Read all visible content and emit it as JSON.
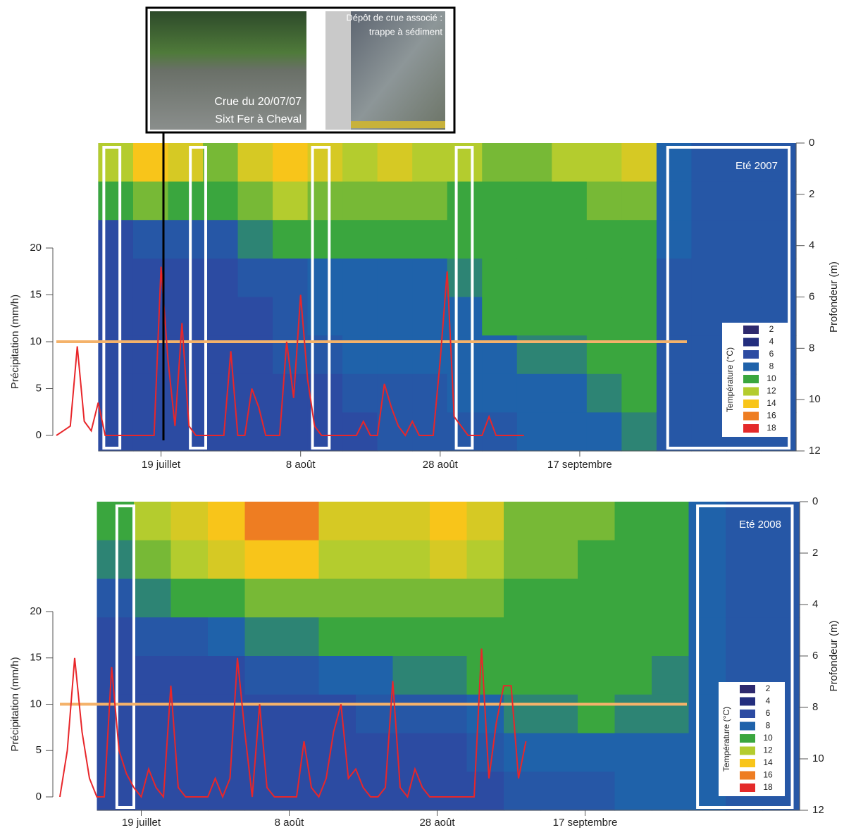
{
  "inset": {
    "left_caption": [
      "Crue du 20/07/07",
      "Sixt Fer à Cheval"
    ],
    "right_caption": [
      "Dépôt de crue associé :",
      "trappe à sédiment"
    ]
  },
  "chart_data": [
    {
      "type": "heatmap_line",
      "title": "Eté 2007",
      "ylabel": "Précipitation (mm/h)",
      "y2label": "Profondeur (m)",
      "xlim": [
        4,
        110
      ],
      "xticks": [
        {
          "value": 19,
          "label": "19 juillet"
        },
        {
          "value": 39,
          "label": "8 août"
        },
        {
          "value": 59,
          "label": "28 août"
        },
        {
          "value": 79,
          "label": "17 septembre"
        }
      ],
      "ylim": [
        0,
        20
      ],
      "yticks": [
        0,
        5,
        10,
        15,
        20
      ],
      "y2lim": [
        0,
        12
      ],
      "y2ticks": [
        0,
        2,
        4,
        6,
        8,
        10,
        12
      ],
      "threshold": 10,
      "threshold_color": "#f4b26a",
      "line_color": "#e8262a",
      "highlights": [
        [
          10.8,
          13.1
        ],
        [
          23.2,
          25.4
        ],
        [
          40.7,
          43.1
        ],
        [
          61.3,
          63.6
        ],
        [
          91.6,
          109
        ]
      ],
      "x": [
        4,
        5,
        6,
        7,
        8,
        9,
        10,
        11,
        12,
        13,
        14,
        15,
        16,
        17,
        18,
        19,
        20,
        21,
        22,
        23,
        24,
        25,
        26,
        27,
        28,
        29,
        30,
        31,
        32,
        33,
        34,
        35,
        36,
        37,
        38,
        39,
        40,
        41,
        42,
        43,
        44,
        45,
        46,
        47,
        48,
        49,
        50,
        51,
        52,
        53,
        54,
        55,
        56,
        57,
        58,
        59,
        60,
        61,
        62,
        63,
        64,
        65,
        66,
        67,
        68,
        69,
        70,
        71
      ],
      "values": [
        0,
        0.5,
        1,
        9.5,
        1.5,
        0.5,
        3.5,
        0,
        0,
        0,
        0,
        0,
        0,
        0,
        0,
        18,
        8,
        1,
        12,
        1,
        0,
        0,
        0,
        0,
        0,
        9,
        0,
        0,
        5,
        3,
        0,
        0,
        0,
        10,
        4,
        15,
        6,
        1,
        0,
        0,
        0,
        0,
        0,
        0,
        1.5,
        0,
        0,
        5.5,
        3,
        1,
        0,
        1.5,
        0,
        0,
        0,
        8,
        17.5,
        2,
        1,
        0,
        0,
        0,
        2,
        0,
        0,
        0,
        0,
        0
      ],
      "grid_x": [
        10,
        15,
        20,
        25,
        30,
        35,
        40,
        45,
        50,
        55,
        60,
        65,
        70,
        75,
        80,
        85,
        90,
        95,
        100,
        105,
        110
      ],
      "grid_depth": [
        0,
        1.5,
        3,
        4.5,
        6,
        7.5,
        9,
        10.5,
        12
      ],
      "z": [
        [
          12,
          10,
          6,
          6,
          6,
          6,
          6,
          6
        ],
        [
          14,
          11,
          7,
          6,
          6,
          6,
          6,
          6
        ],
        [
          13,
          10,
          7,
          6,
          6,
          6,
          6,
          6
        ],
        [
          11,
          10,
          7,
          6,
          6,
          6,
          6,
          6
        ],
        [
          13,
          11,
          9,
          7,
          6,
          6,
          6,
          6
        ],
        [
          14,
          12,
          10,
          7,
          7,
          7,
          6,
          6
        ],
        [
          13,
          11,
          10,
          8,
          8,
          7,
          6,
          6
        ],
        [
          12,
          11,
          10,
          8,
          8,
          8,
          7,
          6
        ],
        [
          13,
          11,
          10,
          8,
          8,
          8,
          7,
          7
        ],
        [
          12,
          11,
          10,
          8,
          8,
          8,
          7,
          7
        ],
        [
          12,
          10,
          10,
          9,
          8,
          8,
          8,
          7
        ],
        [
          11,
          10,
          10,
          10,
          10,
          8,
          8,
          7
        ],
        [
          11,
          10,
          10,
          10,
          10,
          9,
          8,
          8
        ],
        [
          12,
          10,
          10,
          10,
          10,
          9,
          8,
          8
        ],
        [
          12,
          11,
          10,
          10,
          10,
          10,
          9,
          8
        ],
        [
          13,
          11,
          10,
          10,
          10,
          10,
          10,
          9
        ],
        [
          8,
          8,
          8,
          7,
          7,
          7,
          7,
          7
        ],
        [
          7,
          7,
          7,
          7,
          7,
          7,
          7,
          7
        ],
        [
          7,
          7,
          7,
          7,
          7,
          7,
          7,
          7
        ],
        [
          7,
          7,
          7,
          7,
          7,
          7,
          7,
          7
        ]
      ],
      "legend": {
        "title": "Température (°C)",
        "values": [
          2,
          4,
          6,
          8,
          10,
          12,
          14,
          16,
          18
        ],
        "colors": [
          "#2e2a6e",
          "#232e7e",
          "#2c4ba2",
          "#1f62aa",
          "#3aa63e",
          "#b4cc2e",
          "#f8c51a",
          "#ee7d22",
          "#e42a2a"
        ]
      }
    },
    {
      "type": "heatmap_line",
      "title": "Eté 2008",
      "ylabel": "Précipitation (mm/h)",
      "y2label": "Profondeur (m)",
      "xlim": [
        8,
        108
      ],
      "xticks": [
        {
          "value": 19,
          "label": "19 juillet"
        },
        {
          "value": 39,
          "label": "8 août"
        },
        {
          "value": 59,
          "label": "28 août"
        },
        {
          "value": 79,
          "label": "17 septembre"
        }
      ],
      "ylim": [
        0,
        20
      ],
      "yticks": [
        0,
        5,
        10,
        15,
        20
      ],
      "y2lim": [
        0,
        12
      ],
      "y2ticks": [
        0,
        2,
        4,
        6,
        8,
        10,
        12
      ],
      "threshold": 10,
      "threshold_color": "#f4b26a",
      "line_color": "#e8262a",
      "highlights": [
        [
          15.7,
          18
        ],
        [
          94.2,
          107
        ]
      ],
      "x": [
        8,
        9,
        10,
        11,
        12,
        13,
        14,
        15,
        16,
        17,
        18,
        19,
        20,
        21,
        22,
        23,
        24,
        25,
        26,
        27,
        28,
        29,
        30,
        31,
        32,
        33,
        34,
        35,
        36,
        37,
        38,
        39,
        40,
        41,
        42,
        43,
        44,
        45,
        46,
        47,
        48,
        49,
        50,
        51,
        52,
        53,
        54,
        55,
        56,
        57,
        58,
        59,
        60,
        61,
        62,
        63,
        64,
        65,
        66,
        67,
        68,
        69,
        70,
        71
      ],
      "values": [
        0,
        5,
        15,
        7,
        2,
        0,
        0,
        14,
        5,
        2.5,
        1,
        0,
        3,
        1,
        0,
        12,
        1,
        0,
        0,
        0,
        0,
        2,
        0,
        2,
        15,
        7,
        0,
        10,
        1,
        0,
        0,
        0,
        0,
        6,
        1,
        0,
        2,
        7,
        10,
        2,
        3,
        1,
        0,
        0,
        1,
        12.5,
        1,
        0,
        3,
        1,
        0,
        0,
        0,
        0,
        0,
        0,
        0,
        16,
        2,
        8,
        12,
        12,
        2,
        6
      ],
      "grid_x": [
        13,
        18,
        23,
        28,
        33,
        38,
        43,
        48,
        53,
        58,
        63,
        68,
        73,
        78,
        83,
        88,
        93,
        98,
        103,
        108
      ],
      "grid_depth": [
        0,
        1.5,
        3,
        4.5,
        6,
        7.5,
        9,
        10.5,
        12
      ],
      "z": [
        [
          10,
          9,
          7,
          6,
          6,
          6,
          6,
          6
        ],
        [
          12,
          11,
          9,
          7,
          6,
          6,
          6,
          6
        ],
        [
          13,
          12,
          10,
          7,
          6,
          6,
          6,
          6
        ],
        [
          14,
          13,
          10,
          8,
          6,
          6,
          6,
          6
        ],
        [
          16,
          14,
          11,
          9,
          7,
          6,
          6,
          6
        ],
        [
          16,
          14,
          11,
          9,
          7,
          6,
          6,
          6
        ],
        [
          13,
          12,
          11,
          10,
          8,
          6,
          6,
          6
        ],
        [
          13,
          12,
          11,
          10,
          8,
          7,
          6,
          6
        ],
        [
          13,
          12,
          11,
          10,
          9,
          7,
          6,
          6
        ],
        [
          14,
          13,
          11,
          10,
          9,
          7,
          6,
          6
        ],
        [
          13,
          12,
          11,
          10,
          10,
          8,
          7,
          6
        ],
        [
          11,
          11,
          10,
          10,
          10,
          9,
          8,
          7
        ],
        [
          11,
          11,
          10,
          10,
          10,
          9,
          8,
          7
        ],
        [
          11,
          10,
          10,
          10,
          10,
          10,
          8,
          7
        ],
        [
          10,
          10,
          10,
          10,
          10,
          9,
          8,
          8
        ],
        [
          10,
          10,
          10,
          10,
          9,
          9,
          8,
          8
        ],
        [
          8,
          8,
          8,
          8,
          8,
          8,
          8,
          8
        ],
        [
          7,
          7,
          7,
          7,
          7,
          7,
          7,
          7
        ],
        [
          7,
          7,
          7,
          7,
          7,
          7,
          7,
          7
        ]
      ],
      "legend": {
        "title": "Température (°C)",
        "values": [
          2,
          4,
          6,
          8,
          10,
          12,
          14,
          16,
          18
        ],
        "colors": [
          "#2e2a6e",
          "#232e7e",
          "#2c4ba2",
          "#1f62aa",
          "#3aa63e",
          "#b4cc2e",
          "#f8c51a",
          "#ee7d22",
          "#e42a2a"
        ]
      }
    }
  ]
}
